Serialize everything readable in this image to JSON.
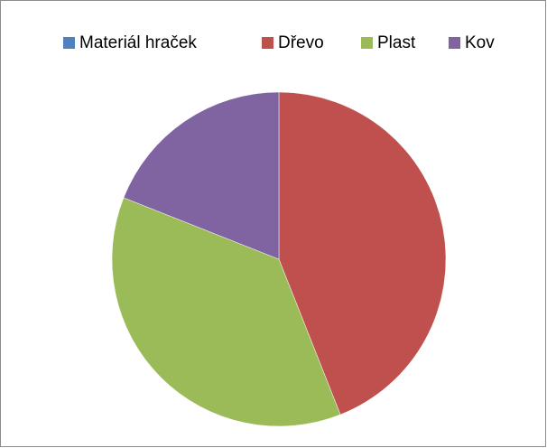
{
  "chart_data": {
    "type": "pie",
    "categories": [
      "Materiál hraček",
      "Dřevo",
      "Plast",
      "Kov"
    ],
    "values": [
      0,
      44,
      37,
      19
    ],
    "colors": [
      "#4f81bd",
      "#c0504d",
      "#9bbb59",
      "#8064a2"
    ],
    "legend": "top"
  }
}
